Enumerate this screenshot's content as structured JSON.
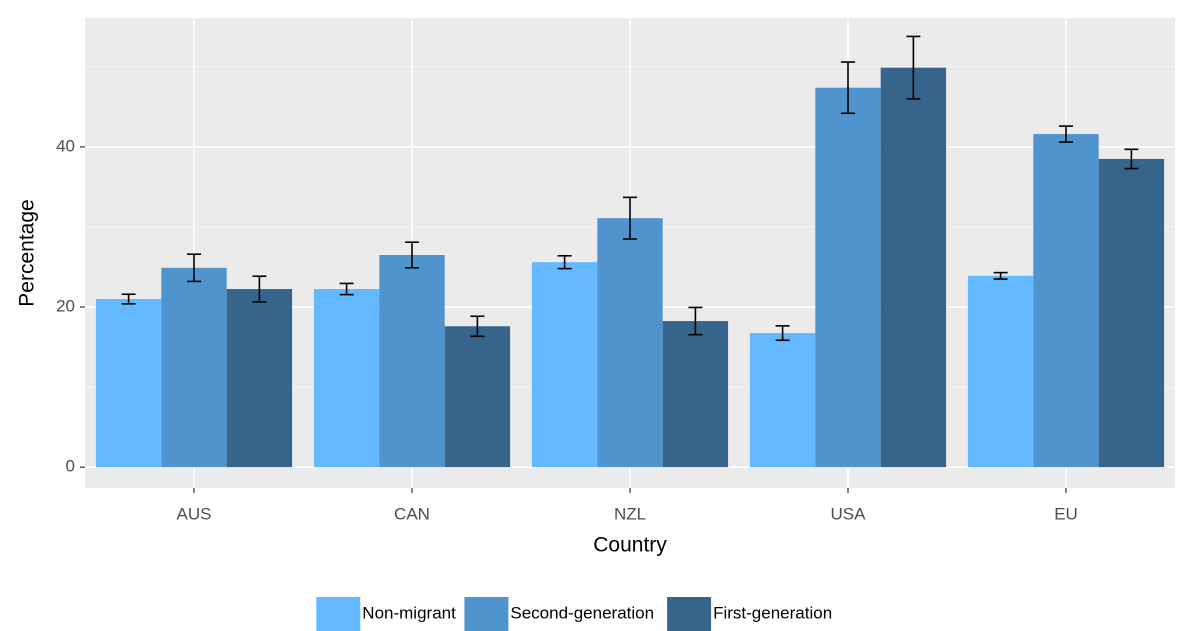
{
  "chart_data": {
    "type": "bar",
    "x_label": "Country",
    "y_label": "Percentage",
    "categories": [
      "AUS",
      "CAN",
      "NZL",
      "USA",
      "EU"
    ],
    "series": [
      {
        "name": "Non-migrant",
        "color": "#63b8ff",
        "values": [
          21.0,
          22.25,
          25.6,
          16.75,
          23.9
        ],
        "errors": [
          0.6,
          0.7,
          0.8,
          0.9,
          0.4
        ]
      },
      {
        "name": "Second-generation",
        "color": "#4f94cd",
        "values": [
          24.9,
          26.5,
          31.1,
          47.4,
          41.6
        ],
        "errors": [
          1.7,
          1.6,
          2.6,
          3.2,
          1.0
        ]
      },
      {
        "name": "First-generation",
        "color": "#36648b",
        "values": [
          22.25,
          17.6,
          18.25,
          49.9,
          38.5
        ],
        "errors": [
          1.6,
          1.25,
          1.7,
          3.9,
          1.2
        ]
      }
    ],
    "ylim": [
      -2.6,
      56.1
    ],
    "yticks": [
      0,
      20,
      40
    ],
    "minor_yticks": [
      10,
      30,
      50
    ],
    "grid": true,
    "legend": "bottom"
  }
}
